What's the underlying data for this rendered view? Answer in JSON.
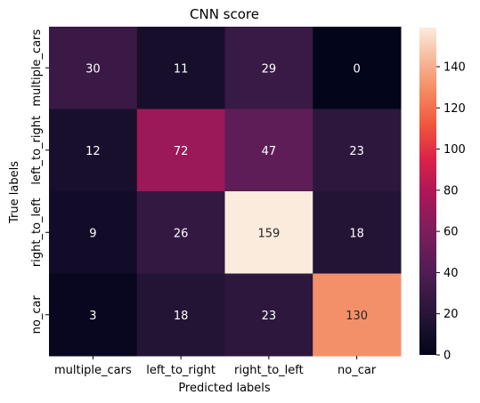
{
  "chart_data": {
    "type": "heatmap",
    "title": "CNN score",
    "xlabel": "Predicted labels",
    "ylabel": "True labels",
    "x_categories": [
      "multiple_cars",
      "left_to_right",
      "right_to_left",
      "no_car"
    ],
    "y_categories": [
      "multiple_cars",
      "left_to_right",
      "right_to_left",
      "no_car"
    ],
    "values": [
      [
        30,
        11,
        29,
        0
      ],
      [
        12,
        72,
        47,
        23
      ],
      [
        9,
        26,
        159,
        18
      ],
      [
        3,
        18,
        23,
        130
      ]
    ],
    "colorbar": {
      "min": 0,
      "max": 159,
      "ticks": [
        0,
        20,
        40,
        60,
        80,
        100,
        120,
        140
      ],
      "colormap": "rocket"
    }
  }
}
